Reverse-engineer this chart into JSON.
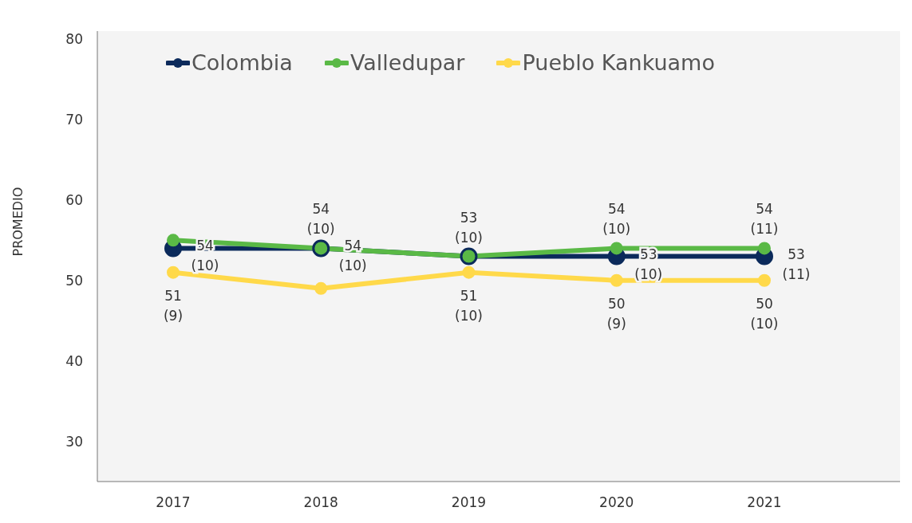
{
  "chart_data": {
    "type": "line",
    "ylabel": "PROMEDIO",
    "categories": [
      "2017",
      "2018",
      "2019",
      "2020",
      "2021"
    ],
    "series": [
      {
        "name": "Colombia",
        "color": "#0b2a5b",
        "values": [
          54,
          54,
          53,
          53,
          53
        ],
        "value_labels": [
          "54\n(10)",
          "54\n(10)",
          null,
          "53\n(10)",
          "53\n(11)"
        ]
      },
      {
        "name": "Valledupar",
        "color": "#5ab946",
        "values": [
          55,
          54,
          53,
          54,
          54
        ],
        "value_labels": [
          null,
          "54\n(10)",
          "53\n(10)",
          "54\n(10)",
          "54\n(11)"
        ]
      },
      {
        "name": "Pueblo Kankuamo",
        "color": "#ffd94a",
        "values": [
          51,
          49,
          51,
          50,
          50
        ],
        "value_labels": [
          "51\n(9)",
          null,
          "51\n(10)",
          "50\n(9)",
          "50\n(10)"
        ]
      }
    ],
    "ylim": [
      25,
      81
    ],
    "yticks": [
      30,
      40,
      50,
      60,
      70,
      80
    ],
    "grid": false,
    "legend": "top left",
    "marker": "circle",
    "line_style": "solid"
  }
}
